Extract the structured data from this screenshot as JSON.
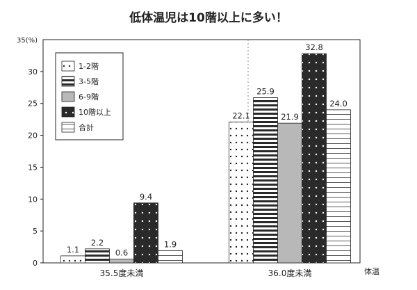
{
  "chart_data": {
    "type": "bar",
    "title": "低体温児は10階以上に多い！",
    "ylabel": "35(%)",
    "xlabel": "体温",
    "ylim": [
      0,
      35
    ],
    "yticks": [
      0,
      5,
      10,
      15,
      20,
      25,
      30
    ],
    "categories": [
      "35.5度未満",
      "36.0度未満"
    ],
    "series": [
      {
        "name": "1-2階",
        "values": [
          1.1,
          22.1
        ],
        "pattern": "dots-on-white"
      },
      {
        "name": "3-5階",
        "values": [
          2.2,
          25.9
        ],
        "pattern": "horizontal-black-stripes"
      },
      {
        "name": "6-9階",
        "values": [
          0.6,
          21.9
        ],
        "pattern": "solid-gray"
      },
      {
        "name": "10階以上",
        "values": [
          9.4,
          32.8
        ],
        "pattern": "white-dots-on-black"
      },
      {
        "name": "合計",
        "values": [
          1.9,
          24.0
        ],
        "pattern": "horizontal-thin-stripes"
      }
    ],
    "data_labels": [
      [
        "1.1",
        "2.2",
        "0.6",
        "9.4",
        "1.9"
      ],
      [
        "22.1",
        "25.9",
        "21.9",
        "32.8",
        "24.0"
      ]
    ],
    "legend_position": "top-left",
    "grid": "dotted vertical center line"
  }
}
